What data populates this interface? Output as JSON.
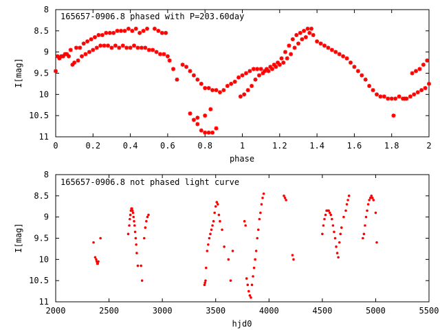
{
  "chart_data": [
    {
      "type": "scatter",
      "title": "165657-0906.8 phased with P=203.60day",
      "xlabel": "phase",
      "ylabel": "I[mag]",
      "xlim": [
        0,
        2
      ],
      "ylim": [
        11,
        8
      ],
      "y_inverted": true,
      "grid": false,
      "legend": "none",
      "marker_color": "#ff0000",
      "x_ticks": [
        "0",
        "0.2",
        "0.4",
        "0.6",
        "0.8",
        "1",
        "1.2",
        "1.4",
        "1.6",
        "1.8",
        "2"
      ],
      "y_ticks": [
        "8",
        "8.5",
        "9",
        "9.5",
        "10",
        "10.5",
        "11"
      ],
      "x_tick_values": [
        0,
        0.2,
        0.4,
        0.6,
        0.8,
        1,
        1.2,
        1.4,
        1.6,
        1.8,
        2
      ],
      "y_tick_values": [
        8,
        8.5,
        9,
        9.5,
        10,
        10.5,
        11
      ],
      "series": [
        {
          "x": [
            0.0,
            0.01,
            0.03,
            0.05,
            0.07,
            0.09,
            0.1,
            0.12,
            0.14,
            0.16,
            0.18,
            0.2,
            0.22,
            0.24,
            0.26,
            0.28,
            0.3,
            0.32,
            0.34,
            0.36,
            0.38,
            0.4,
            0.42,
            0.44,
            0.46,
            0.48,
            0.5,
            0.52,
            0.54,
            0.56,
            0.58,
            0.6,
            0.02,
            0.04,
            0.06,
            0.08,
            0.11,
            0.13,
            0.15,
            0.17,
            0.19,
            0.21,
            0.23,
            0.25,
            0.27,
            0.29,
            0.31,
            0.33,
            0.35,
            0.37,
            0.39,
            0.41,
            0.43,
            0.45,
            0.47,
            0.49,
            0.53,
            0.55,
            0.57,
            0.59,
            0.61,
            0.63,
            0.65,
            0.68,
            0.7,
            0.72,
            0.74,
            0.76,
            0.78,
            0.8,
            0.82,
            0.84,
            0.86,
            0.88,
            0.9,
            0.72,
            0.74,
            0.76,
            0.78,
            0.8,
            0.82,
            0.84,
            0.86,
            0.76,
            0.8,
            0.83,
            0.92,
            0.94,
            0.96,
            0.98,
            1.0,
            1.02,
            1.04,
            1.06,
            1.08,
            1.1,
            0.99,
            1.01,
            1.03,
            1.05,
            1.07,
            1.09,
            1.11,
            1.13,
            1.15,
            1.17,
            1.19,
            1.21,
            1.23,
            1.25,
            1.27,
            1.29,
            1.31,
            1.33,
            1.35,
            1.37,
            1.12,
            1.14,
            1.16,
            1.18,
            1.2,
            1.22,
            1.24,
            1.26,
            1.28,
            1.3,
            1.32,
            1.34,
            1.36,
            1.38,
            1.4,
            1.42,
            1.44,
            1.46,
            1.48,
            1.5,
            1.52,
            1.54,
            1.56,
            1.58,
            1.6,
            1.62,
            1.64,
            1.66,
            1.68,
            1.7,
            1.72,
            1.74,
            1.76,
            1.78,
            1.8,
            1.82,
            1.84,
            1.86,
            1.88,
            1.9,
            1.92,
            1.94,
            1.96,
            1.98,
            2.0,
            1.81,
            1.87,
            1.91,
            1.93,
            1.95,
            1.97,
            1.99
          ],
          "y": [
            9.45,
            9.1,
            9.1,
            9.05,
            9.1,
            9.3,
            9.25,
            9.2,
            9.1,
            9.05,
            9.0,
            8.95,
            8.9,
            8.85,
            8.85,
            8.85,
            8.9,
            8.85,
            8.9,
            8.85,
            8.9,
            8.9,
            8.85,
            8.9,
            8.9,
            8.9,
            8.95,
            8.95,
            9.0,
            9.05,
            9.05,
            9.1,
            9.15,
            9.1,
            9.05,
            8.95,
            8.9,
            8.9,
            8.8,
            8.75,
            8.7,
            8.65,
            8.6,
            8.6,
            8.55,
            8.55,
            8.55,
            8.5,
            8.5,
            8.5,
            8.45,
            8.5,
            8.45,
            8.55,
            8.5,
            8.45,
            8.45,
            8.5,
            8.55,
            8.55,
            9.2,
            9.4,
            9.65,
            9.3,
            9.35,
            9.45,
            9.55,
            9.65,
            9.75,
            9.85,
            9.85,
            9.9,
            9.9,
            9.95,
            9.9,
            10.45,
            10.6,
            10.7,
            10.85,
            10.9,
            10.9,
            10.9,
            10.8,
            10.55,
            10.5,
            10.35,
            9.8,
            9.75,
            9.7,
            9.6,
            9.55,
            9.5,
            9.45,
            9.4,
            9.4,
            9.4,
            10.05,
            10.0,
            9.9,
            9.8,
            9.65,
            9.55,
            9.5,
            9.4,
            9.35,
            9.3,
            9.25,
            9.15,
            9.0,
            8.85,
            8.7,
            8.6,
            8.55,
            8.5,
            8.45,
            8.45,
            9.45,
            9.45,
            9.4,
            9.35,
            9.3,
            9.25,
            9.15,
            9.05,
            8.9,
            8.8,
            8.7,
            8.65,
            8.55,
            8.6,
            8.75,
            8.8,
            8.85,
            8.9,
            8.95,
            9.0,
            9.05,
            9.1,
            9.15,
            9.25,
            9.35,
            9.45,
            9.55,
            9.65,
            9.8,
            9.9,
            10.0,
            10.05,
            10.05,
            10.1,
            10.1,
            10.1,
            10.05,
            10.1,
            10.1,
            10.05,
            10.0,
            9.95,
            9.9,
            9.85,
            9.75,
            10.5,
            10.1,
            9.5,
            9.45,
            9.4,
            9.3,
            9.2
          ]
        }
      ]
    },
    {
      "type": "scatter",
      "title": "165657-0906.8 not phased light curve",
      "xlabel": "hjd0",
      "ylabel": "I[mag]",
      "xlim": [
        2000,
        5500
      ],
      "ylim": [
        11,
        8
      ],
      "y_inverted": true,
      "grid": false,
      "legend": "none",
      "marker_color": "#ff0000",
      "x_ticks": [
        "2000",
        "2500",
        "3000",
        "3500",
        "4000",
        "4500",
        "5000",
        "5500"
      ],
      "y_ticks": [
        "8",
        "8.5",
        "9",
        "9.5",
        "10",
        "10.5",
        "11"
      ],
      "x_tick_values": [
        2000,
        2500,
        3000,
        3500,
        4000,
        4500,
        5000,
        5500
      ],
      "y_tick_values": [
        8,
        8.5,
        9,
        9.5,
        10,
        10.5,
        11
      ],
      "series": [
        {
          "x": [
            2355,
            2370,
            2380,
            2385,
            2390,
            2395,
            2400,
            2420,
            2680,
            2690,
            2695,
            2700,
            2705,
            2710,
            2715,
            2720,
            2725,
            2730,
            2735,
            2740,
            2745,
            2750,
            2755,
            2760,
            2770,
            2800,
            2810,
            2830,
            2840,
            2850,
            2860,
            2870,
            3395,
            3400,
            3405,
            3410,
            3420,
            3430,
            3440,
            3450,
            3460,
            3470,
            3480,
            3490,
            3500,
            3510,
            3520,
            3530,
            3540,
            3560,
            3580,
            3620,
            3640,
            3660,
            3770,
            3780,
            3790,
            3800,
            3810,
            3820,
            3830,
            3840,
            3850,
            3860,
            3870,
            3880,
            3890,
            3900,
            3910,
            3920,
            3930,
            3940,
            3950,
            4140,
            4150,
            4160,
            4220,
            4230,
            4500,
            4510,
            4520,
            4530,
            4540,
            4550,
            4560,
            4570,
            4580,
            4590,
            4600,
            4610,
            4620,
            4630,
            4640,
            4650,
            4660,
            4670,
            4680,
            4700,
            4720,
            4730,
            4740,
            4750,
            4880,
            4890,
            4900,
            4910,
            4920,
            4930,
            4940,
            4950,
            4960,
            4970,
            4980,
            5000,
            5010
          ],
          "y": [
            9.6,
            9.95,
            10.0,
            10.05,
            10.1,
            10.1,
            10.05,
            9.5,
            9.4,
            9.2,
            9.05,
            8.95,
            8.85,
            8.8,
            8.8,
            8.85,
            8.9,
            9.0,
            9.1,
            9.2,
            9.35,
            9.5,
            9.65,
            9.85,
            10.15,
            10.15,
            10.5,
            9.5,
            9.25,
            9.1,
            9.0,
            8.95,
            10.6,
            10.55,
            10.5,
            10.2,
            9.8,
            9.65,
            9.5,
            9.4,
            9.3,
            9.2,
            9.1,
            8.9,
            8.75,
            8.65,
            8.7,
            8.95,
            9.1,
            9.3,
            9.7,
            10.0,
            10.5,
            9.8,
            9.1,
            9.2,
            10.45,
            10.6,
            10.75,
            10.85,
            10.9,
            10.6,
            10.4,
            10.2,
            10.0,
            9.8,
            9.5,
            9.3,
            9.05,
            8.9,
            8.7,
            8.55,
            8.45,
            8.5,
            8.55,
            8.6,
            9.9,
            10.0,
            9.4,
            9.2,
            9.05,
            8.95,
            8.85,
            8.85,
            8.85,
            8.9,
            8.95,
            9.05,
            9.2,
            9.35,
            9.5,
            9.7,
            9.85,
            9.95,
            9.6,
            9.4,
            9.25,
            9.0,
            8.85,
            8.7,
            8.6,
            8.5,
            9.5,
            9.4,
            9.2,
            9.0,
            8.85,
            8.7,
            8.6,
            8.55,
            8.5,
            8.55,
            8.6,
            8.9,
            9.6
          ]
        }
      ]
    }
  ]
}
